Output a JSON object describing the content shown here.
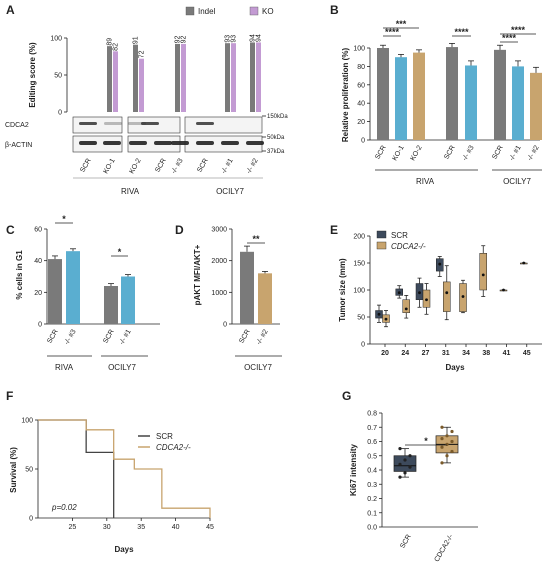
{
  "chart_data": [
    {
      "panel": "A",
      "type": "bar",
      "ylabel": "Editing score (%)",
      "ylim": [
        0,
        100
      ],
      "yticks": [
        0,
        50,
        100
      ],
      "legend": [
        "Indel",
        "KO"
      ],
      "legend_position": "top",
      "colors": {
        "Indel": "#7a7a7a",
        "KO": "#c39bd3"
      },
      "groups": [
        {
          "name": "RIVA",
          "lanes": [
            {
              "label": "SCR",
              "values": []
            },
            {
              "label": "KO-1",
              "values": [
                89,
                82
              ]
            },
            {
              "label": "KO-2",
              "values": [
                91,
                72
              ]
            },
            {
              "label": "SCR",
              "values": []
            },
            {
              "label": "-/- #3",
              "values": [
                92,
                92
              ]
            }
          ]
        },
        {
          "name": "OCILY7",
          "lanes": [
            {
              "label": "SCR",
              "values": []
            },
            {
              "label": "-/- #1",
              "values": [
                93,
                93
              ]
            },
            {
              "label": "-/- #2",
              "values": [
                94,
                94
              ]
            }
          ]
        }
      ],
      "value_labels": [
        "89",
        "82",
        "91",
        "72",
        "92",
        "92",
        "93",
        "93",
        "94",
        "94"
      ],
      "blot_rows": [
        "CDCA2",
        "β-ACTIN"
      ],
      "markers": [
        "150kDa",
        "50kDa",
        "37kDa"
      ]
    },
    {
      "panel": "B",
      "type": "bar",
      "ylabel": "Relative proliferation (%)",
      "ylim": [
        0,
        100
      ],
      "yticks": [
        0,
        20,
        40,
        60,
        80,
        100
      ],
      "categories": [
        "SCR",
        "KO-1",
        "KO-2",
        "SCR",
        "-/- #3",
        "SCR",
        "-/- #1",
        "-/- #2"
      ],
      "values": [
        100,
        90,
        95,
        101,
        81,
        98,
        80,
        73
      ],
      "errors": [
        3,
        3,
        3,
        4,
        5,
        5,
        6,
        6
      ],
      "groups": [
        {
          "name": "RIVA",
          "range": [
            0,
            4
          ]
        },
        {
          "name": "OCILY7",
          "range": [
            5,
            7
          ]
        }
      ],
      "significance": [
        {
          "from": 0,
          "to": 1,
          "label": "****"
        },
        {
          "from": 0,
          "to": 2,
          "label": "***"
        },
        {
          "from": 3,
          "to": 4,
          "label": "****"
        },
        {
          "from": 5,
          "to": 6,
          "label": "****"
        },
        {
          "from": 5,
          "to": 7,
          "label": "****"
        }
      ]
    },
    {
      "panel": "C",
      "type": "bar",
      "ylabel": "% cells in G1",
      "ylim": [
        0,
        60
      ],
      "yticks": [
        0,
        20,
        40,
        60
      ],
      "categories": [
        "SCR",
        "-/- #3",
        "SCR",
        "-/- #1"
      ],
      "values": [
        41,
        46,
        24,
        30
      ],
      "errors": [
        2,
        1.5,
        1.5,
        1.2
      ],
      "groups": [
        {
          "name": "RIVA",
          "range": [
            0,
            1
          ]
        },
        {
          "name": "OCILY7",
          "range": [
            2,
            3
          ]
        }
      ],
      "significance": [
        {
          "from": 0,
          "to": 1,
          "label": "*"
        },
        {
          "from": 2,
          "to": 3,
          "label": "*"
        }
      ]
    },
    {
      "panel": "D",
      "type": "bar",
      "ylabel": "pAKT MFI/AKT+",
      "ylim": [
        0,
        3000
      ],
      "yticks": [
        0,
        1000,
        2000,
        3000
      ],
      "categories": [
        "SCR",
        "-/- #2"
      ],
      "values": [
        2280,
        1600
      ],
      "errors": [
        180,
        60
      ],
      "groups": [
        {
          "name": "OCILY7",
          "range": [
            0,
            1
          ]
        }
      ],
      "significance": [
        {
          "from": 0,
          "to": 1,
          "label": "**"
        }
      ]
    },
    {
      "panel": "E",
      "type": "box",
      "ylabel": "Tumor size (mm)",
      "xlabel": "Days",
      "ylim": [
        0,
        200
      ],
      "yticks": [
        0,
        50,
        100,
        150,
        200
      ],
      "categories": [
        "20",
        "24",
        "27",
        "31",
        "34",
        "38",
        "41",
        "45"
      ],
      "legend": [
        "SCR",
        "CDCA2-/-"
      ],
      "legend_position": "top-left",
      "series": [
        {
          "name": "SCR",
          "color": "#3d4a5c",
          "boxes": [
            {
              "day": "20",
              "min": 40,
              "q1": 48,
              "median": 55,
              "q3": 62,
              "max": 72
            },
            {
              "day": "24",
              "min": 85,
              "q1": 90,
              "median": 95,
              "q3": 102,
              "max": 108
            },
            {
              "day": "27",
              "min": 68,
              "q1": 82,
              "median": 95,
              "q3": 112,
              "max": 122
            },
            {
              "day": "31",
              "min": 125,
              "q1": 135,
              "median": 148,
              "q3": 158,
              "max": 162
            }
          ]
        },
        {
          "name": "CDCA2-/-",
          "color": "#c8a46e",
          "boxes": [
            {
              "day": "20",
              "min": 32,
              "q1": 40,
              "median": 46,
              "q3": 54,
              "max": 62
            },
            {
              "day": "24",
              "min": 48,
              "q1": 58,
              "median": 65,
              "q3": 82,
              "max": 90
            },
            {
              "day": "27",
              "min": 55,
              "q1": 68,
              "median": 82,
              "q3": 100,
              "max": 112
            },
            {
              "day": "31",
              "min": 45,
              "q1": 60,
              "median": 95,
              "q3": 115,
              "max": 145
            },
            {
              "day": "34",
              "min": 58,
              "q1": 60,
              "median": 88,
              "q3": 112,
              "max": 118
            },
            {
              "day": "38",
              "min": 88,
              "q1": 100,
              "median": 128,
              "q3": 168,
              "max": 182
            },
            {
              "day": "41",
              "min": 100,
              "q1": 100,
              "median": 100,
              "q3": 100,
              "max": 100
            },
            {
              "day": "45",
              "min": 150,
              "q1": 150,
              "median": 150,
              "q3": 150,
              "max": 150
            }
          ]
        }
      ]
    },
    {
      "panel": "F",
      "type": "line",
      "ylabel": "Survival (%)",
      "xlabel": "Days",
      "xlim": [
        20,
        45
      ],
      "ylim": [
        0,
        100
      ],
      "xticks": [
        25,
        30,
        35,
        40,
        45
      ],
      "yticks": [
        0,
        50,
        100
      ],
      "legend": [
        "SCR",
        "CDCA2-/-"
      ],
      "legend_position": "top-right",
      "annotation": "p=0.02",
      "series": [
        {
          "name": "SCR",
          "color": "#444444",
          "points": [
            [
              20,
              100
            ],
            [
              27,
              100
            ],
            [
              27,
              67
            ],
            [
              31,
              67
            ],
            [
              31,
              0
            ]
          ]
        },
        {
          "name": "CDCA2-/-",
          "color": "#c8a46e",
          "points": [
            [
              20,
              100
            ],
            [
              27,
              100
            ],
            [
              27,
              90
            ],
            [
              31,
              90
            ],
            [
              31,
              60
            ],
            [
              34,
              60
            ],
            [
              34,
              50
            ],
            [
              38,
              50
            ],
            [
              38,
              10
            ],
            [
              45,
              10
            ],
            [
              45,
              0
            ]
          ]
        }
      ]
    },
    {
      "panel": "G",
      "type": "box",
      "ylabel": "Ki67 intensity",
      "ylim": [
        0,
        0.8
      ],
      "yticks": [
        0,
        0.1,
        0.2,
        0.3,
        0.4,
        0.5,
        0.6,
        0.7,
        0.8
      ],
      "categories": [
        "SCR",
        "CDCA2-/-"
      ],
      "significance": [
        {
          "from": 0,
          "to": 1,
          "label": "*"
        }
      ],
      "series": [
        {
          "name": "SCR",
          "color": "#3d4a5c",
          "min": 0.35,
          "q1": 0.39,
          "median": 0.43,
          "q3": 0.5,
          "max": 0.55,
          "points": [
            0.35,
            0.38,
            0.42,
            0.44,
            0.47,
            0.5,
            0.55
          ]
        },
        {
          "name": "CDCA2-/-",
          "color": "#c8a46e",
          "min": 0.45,
          "q1": 0.52,
          "median": 0.58,
          "q3": 0.64,
          "max": 0.7,
          "points": [
            0.45,
            0.5,
            0.53,
            0.56,
            0.58,
            0.6,
            0.62,
            0.64,
            0.67,
            0.7
          ]
        }
      ]
    }
  ]
}
